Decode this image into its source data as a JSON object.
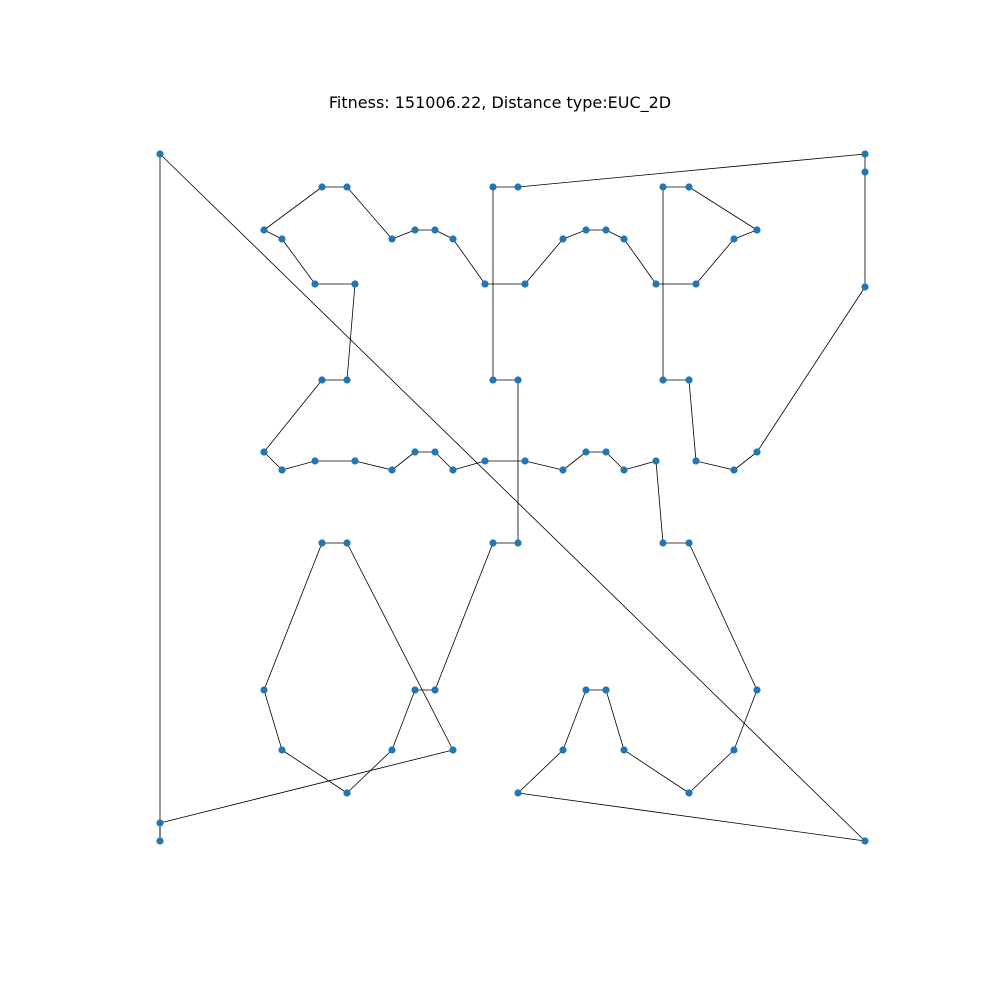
{
  "chart_data": {
    "type": "line",
    "title": "Fitness: 151006.22, Distance type:EUC_2D",
    "xlabel": "",
    "ylabel": "",
    "grid": false,
    "axes_visible": false,
    "xlim": [
      -1.5,
      1.5
    ],
    "ylim": [
      -1.5,
      1.5
    ],
    "colors": {
      "node": "#1f77b4",
      "edge": "#000000"
    },
    "series": [
      {
        "x": [
          -1,
          -0.44,
          -0.38,
          -0.75,
          -0.56,
          -0.68,
          -0.81,
          -0.68,
          -0.56,
          -0.38,
          -0.44,
          -0.75,
          -0.68,
          -0.56,
          -0.81,
          -0.75,
          -0.56,
          -0.44,
          -0.38,
          -0.32,
          -0.26,
          -0.17,
          -0.06,
          -0.01,
          -0.06,
          -0.17,
          -0.17,
          -0.06,
          -0.06,
          0.08,
          0.17,
          0.22,
          0.3,
          0.38,
          0.48,
          0.48,
          0.38,
          0.3,
          0.22,
          0.17,
          0.08,
          0.48,
          0.56,
          0.69,
          0.75,
          0.81,
          1,
          1,
          0.81,
          0.75,
          0.69,
          0.56,
          0.48,
          0.48,
          0.56,
          0.69,
          0.75,
          0.69,
          0.56,
          0.3,
          0.22,
          0.17,
          0.08,
          -0.06,
          1,
          -1,
          -1,
          -0.26,
          -0.32,
          -0.38,
          -0.44,
          -0.56,
          -0.81,
          -0.75,
          -0.56,
          -0.44,
          -0.38,
          -0.32,
          -0.26,
          -0.17,
          -0.06,
          -0.06,
          -0.17,
          -0.17,
          -0.06,
          0.08,
          0.17,
          0.22,
          0.3,
          0.38,
          0.48,
          0.56,
          0.56,
          0.48,
          0.48,
          0.56,
          0.69,
          1,
          1,
          -1,
          -1
        ],
        "y": [
          1,
          0.92,
          0.92,
          0.81,
          0.68,
          0.68,
          0.8,
          0.92,
          0.92,
          0.81,
          0.78,
          0.79,
          0.68,
          0.68,
          0.81,
          0.79,
          0.92,
          0.92,
          0.81,
          0.8,
          0.81,
          0.78,
          0.68,
          0.68,
          0.68,
          0.78,
          0.41,
          0.41,
          0.41,
          0.78,
          0.81,
          0.81,
          0.81,
          0.78,
          0.68,
          0.68,
          0.68,
          0.81,
          0.81,
          0.78,
          0.68,
          0.92,
          0.92,
          0.81,
          0.81,
          0.81,
          1,
          0.95,
          0.63,
          0.21,
          0.19,
          0.41,
          0.41,
          0.41,
          0.41,
          0.19,
          0.21,
          0.19,
          0.23,
          0.23,
          0.23,
          0.21,
          0.23,
          0.23,
          -0.95,
          -0.95,
          1,
          -0.9,
          -0.62,
          -0.44,
          -0.21,
          -0.21,
          -0.2,
          -0.62,
          -0.21,
          -0.21,
          -0.44,
          -0.62,
          -0.78,
          -0.9,
          -0.62,
          -0.44,
          -0.21,
          -0.21,
          -0.21,
          -0.21,
          -0.21,
          -0.21,
          -0.44,
          -0.62,
          -0.79,
          -0.44,
          -0.21,
          -0.21,
          -0.21,
          -0.21,
          -0.21,
          -0.95,
          -0.95,
          -0.95,
          -0.95
        ]
      }
    ]
  }
}
